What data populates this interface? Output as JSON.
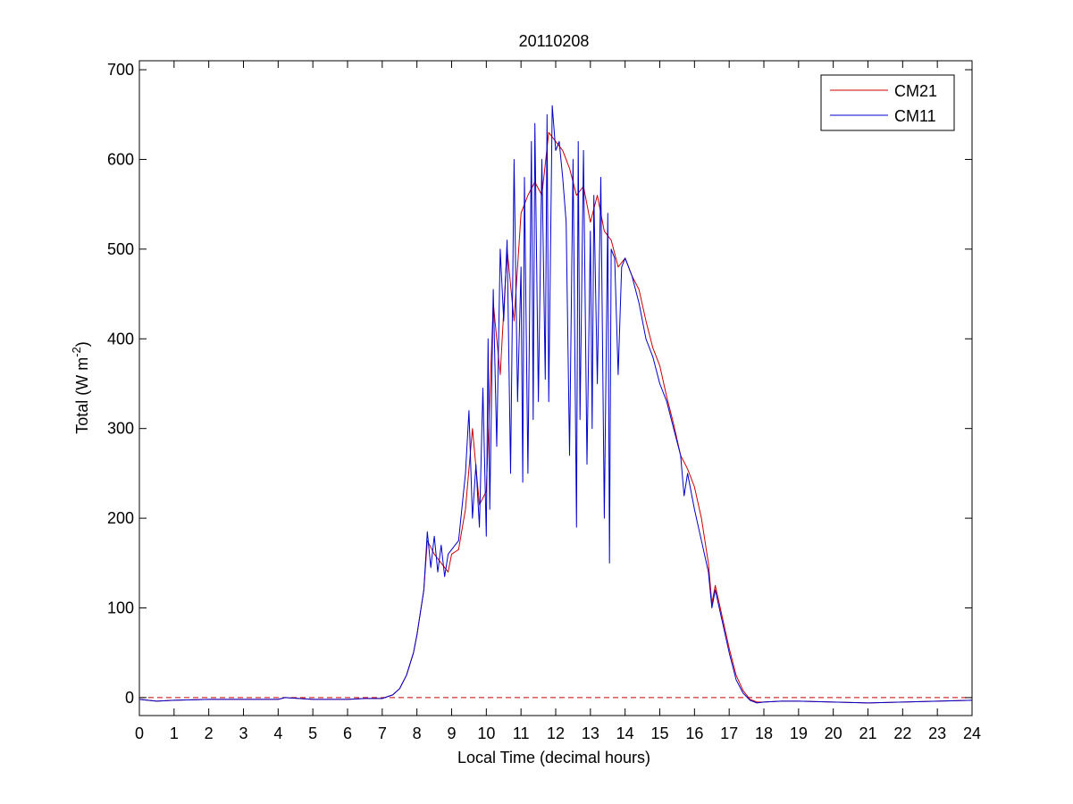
{
  "chart_data": {
    "type": "line",
    "title": "20110208",
    "xlabel": "Local Time (decimal hours)",
    "ylabel": {
      "main": "Total (W m",
      "sup": "-2",
      "close": ")"
    },
    "xlim": [
      0,
      24
    ],
    "ylim": [
      -20,
      710
    ],
    "xticks": [
      0,
      1,
      2,
      3,
      4,
      5,
      6,
      7,
      8,
      9,
      10,
      11,
      12,
      13,
      14,
      15,
      16,
      17,
      18,
      19,
      20,
      21,
      22,
      23,
      24
    ],
    "yticks": [
      0,
      100,
      200,
      300,
      400,
      500,
      600,
      700
    ],
    "grid": false,
    "legend": "top-right",
    "reference_line": {
      "y": 0,
      "color": "#cc0000",
      "style": "dashed"
    },
    "series": [
      {
        "name": "CM21",
        "color": "#cc0000",
        "x": [
          0,
          0.5,
          1,
          2,
          3,
          4,
          4.2,
          5,
          6,
          6.5,
          7,
          7.3,
          7.5,
          7.7,
          7.9,
          8.0,
          8.2,
          8.3,
          8.5,
          8.7,
          8.9,
          9.0,
          9.2,
          9.4,
          9.6,
          9.8,
          10.0,
          10.2,
          10.4,
          10.6,
          10.8,
          11.0,
          11.2,
          11.4,
          11.6,
          11.8,
          12.0,
          12.2,
          12.4,
          12.6,
          12.8,
          13.0,
          13.2,
          13.4,
          13.6,
          13.8,
          14.0,
          14.2,
          14.4,
          14.6,
          14.8,
          15.0,
          15.2,
          15.4,
          15.6,
          15.8,
          16.0,
          16.2,
          16.4,
          16.5,
          16.6,
          16.8,
          17.0,
          17.2,
          17.4,
          17.6,
          17.8,
          18.0,
          18.5,
          19,
          20,
          21,
          22,
          23,
          24
        ],
        "y": [
          -2,
          -4,
          -3,
          -2,
          -2,
          -2,
          0,
          -2,
          -2,
          -1,
          -1,
          3,
          10,
          25,
          50,
          70,
          120,
          175,
          160,
          150,
          140,
          160,
          165,
          210,
          300,
          215,
          230,
          440,
          360,
          500,
          420,
          540,
          560,
          575,
          560,
          630,
          620,
          610,
          590,
          560,
          570,
          530,
          560,
          520,
          510,
          480,
          490,
          470,
          455,
          420,
          390,
          370,
          335,
          305,
          270,
          255,
          235,
          200,
          150,
          105,
          125,
          90,
          55,
          25,
          8,
          -2,
          -5,
          -5,
          -4,
          -4,
          -5,
          -6,
          -5,
          -4,
          -3
        ]
      },
      {
        "name": "CM11",
        "color": "#0000cc",
        "x": [
          0,
          0.5,
          1,
          2,
          3,
          4,
          4.2,
          5,
          6,
          6.5,
          7,
          7.3,
          7.5,
          7.7,
          7.9,
          8.0,
          8.2,
          8.3,
          8.4,
          8.5,
          8.6,
          8.7,
          8.8,
          8.9,
          9.0,
          9.2,
          9.4,
          9.5,
          9.6,
          9.7,
          9.8,
          9.9,
          10.0,
          10.05,
          10.1,
          10.2,
          10.3,
          10.4,
          10.5,
          10.6,
          10.7,
          10.8,
          10.9,
          11.0,
          11.05,
          11.1,
          11.2,
          11.3,
          11.35,
          11.4,
          11.5,
          11.6,
          11.7,
          11.75,
          11.8,
          11.9,
          12.0,
          12.1,
          12.2,
          12.3,
          12.4,
          12.5,
          12.6,
          12.65,
          12.7,
          12.8,
          12.9,
          13.0,
          13.05,
          13.1,
          13.2,
          13.3,
          13.4,
          13.5,
          13.55,
          13.6,
          13.7,
          13.8,
          13.9,
          14.0,
          14.1,
          14.2,
          14.4,
          14.6,
          14.8,
          15.0,
          15.2,
          15.4,
          15.6,
          15.7,
          15.8,
          16.0,
          16.2,
          16.4,
          16.5,
          16.6,
          16.8,
          17.0,
          17.2,
          17.4,
          17.6,
          17.8,
          18.0,
          18.5,
          19,
          20,
          21,
          22,
          23,
          24
        ],
        "y": [
          -2,
          -4,
          -3,
          -2,
          -2,
          -2,
          0,
          -2,
          -2,
          -1,
          -1,
          3,
          10,
          25,
          50,
          70,
          120,
          185,
          145,
          180,
          140,
          170,
          135,
          160,
          165,
          175,
          250,
          320,
          200,
          260,
          190,
          345,
          180,
          400,
          210,
          455,
          280,
          500,
          420,
          510,
          250,
          600,
          330,
          480,
          240,
          580,
          250,
          620,
          310,
          640,
          330,
          600,
          355,
          650,
          330,
          660,
          610,
          620,
          580,
          530,
          270,
          600,
          190,
          620,
          310,
          610,
          260,
          520,
          300,
          560,
          350,
          580,
          200,
          540,
          150,
          500,
          490,
          360,
          480,
          490,
          480,
          470,
          440,
          400,
          380,
          350,
          330,
          300,
          270,
          225,
          250,
          210,
          175,
          140,
          100,
          120,
          85,
          50,
          20,
          5,
          -3,
          -6,
          -5,
          -4,
          -4,
          -5,
          -6,
          -5,
          -4,
          -3
        ]
      }
    ]
  }
}
